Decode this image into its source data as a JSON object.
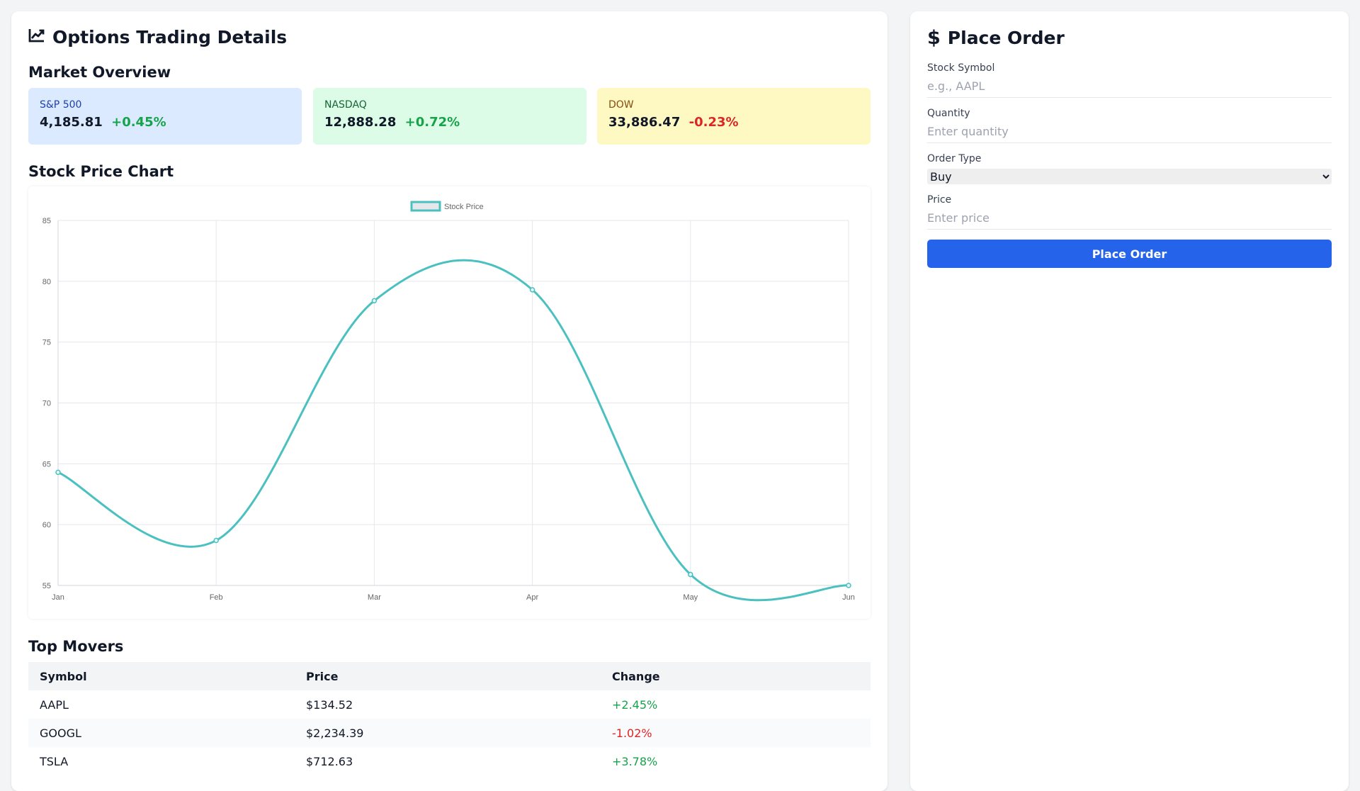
{
  "main": {
    "title": "Options Trading Details",
    "market_overview_title": "Market Overview",
    "indices": [
      {
        "name": "S&P 500",
        "value": "4,185.81",
        "change": "+0.45%",
        "direction": "up",
        "bg": "#dbeafe",
        "label_color": "#1e40af"
      },
      {
        "name": "NASDAQ",
        "value": "12,888.28",
        "change": "+0.72%",
        "direction": "up",
        "bg": "#dcfce7",
        "label_color": "#166534"
      },
      {
        "name": "DOW",
        "value": "33,886.47",
        "change": "-0.23%",
        "direction": "down",
        "bg": "#fef9c3",
        "label_color": "#854d0e"
      }
    ],
    "chart_title": "Stock Price Chart",
    "top_movers_title": "Top Movers",
    "table": {
      "headers": [
        "Symbol",
        "Price",
        "Change"
      ],
      "rows": [
        {
          "symbol": "AAPL",
          "price": "$134.52",
          "change": "+2.45%",
          "direction": "up"
        },
        {
          "symbol": "GOOGL",
          "price": "$2,234.39",
          "change": "-1.02%",
          "direction": "down"
        },
        {
          "symbol": "TSLA",
          "price": "$712.63",
          "change": "+3.78%",
          "direction": "up"
        }
      ]
    }
  },
  "chart_data": {
    "type": "line",
    "categories": [
      "Jan",
      "Feb",
      "Mar",
      "Apr",
      "May",
      "Jun"
    ],
    "series": [
      {
        "name": "Stock Price",
        "values": [
          64.3,
          58.7,
          78.4,
          79.3,
          55.9,
          55.0
        ],
        "color": "#4bc0c0"
      }
    ],
    "ylim": [
      55,
      85
    ],
    "yticks": [
      55,
      60,
      65,
      70,
      75,
      80,
      85
    ],
    "grid": true,
    "legend": "top-center"
  },
  "order_form": {
    "title": "Place Order",
    "fields": {
      "symbol": {
        "label": "Stock Symbol",
        "placeholder": "e.g., AAPL"
      },
      "quantity": {
        "label": "Quantity",
        "placeholder": "Enter quantity"
      },
      "order_type": {
        "label": "Order Type",
        "selected": "Buy"
      },
      "price": {
        "label": "Price",
        "placeholder": "Enter price"
      }
    },
    "submit_label": "Place Order"
  },
  "colors": {
    "accent": "#2563eb",
    "positive": "#16a34a",
    "negative": "#dc2626",
    "icons": [
      "chart-line-icon",
      "dollar-icon"
    ]
  }
}
